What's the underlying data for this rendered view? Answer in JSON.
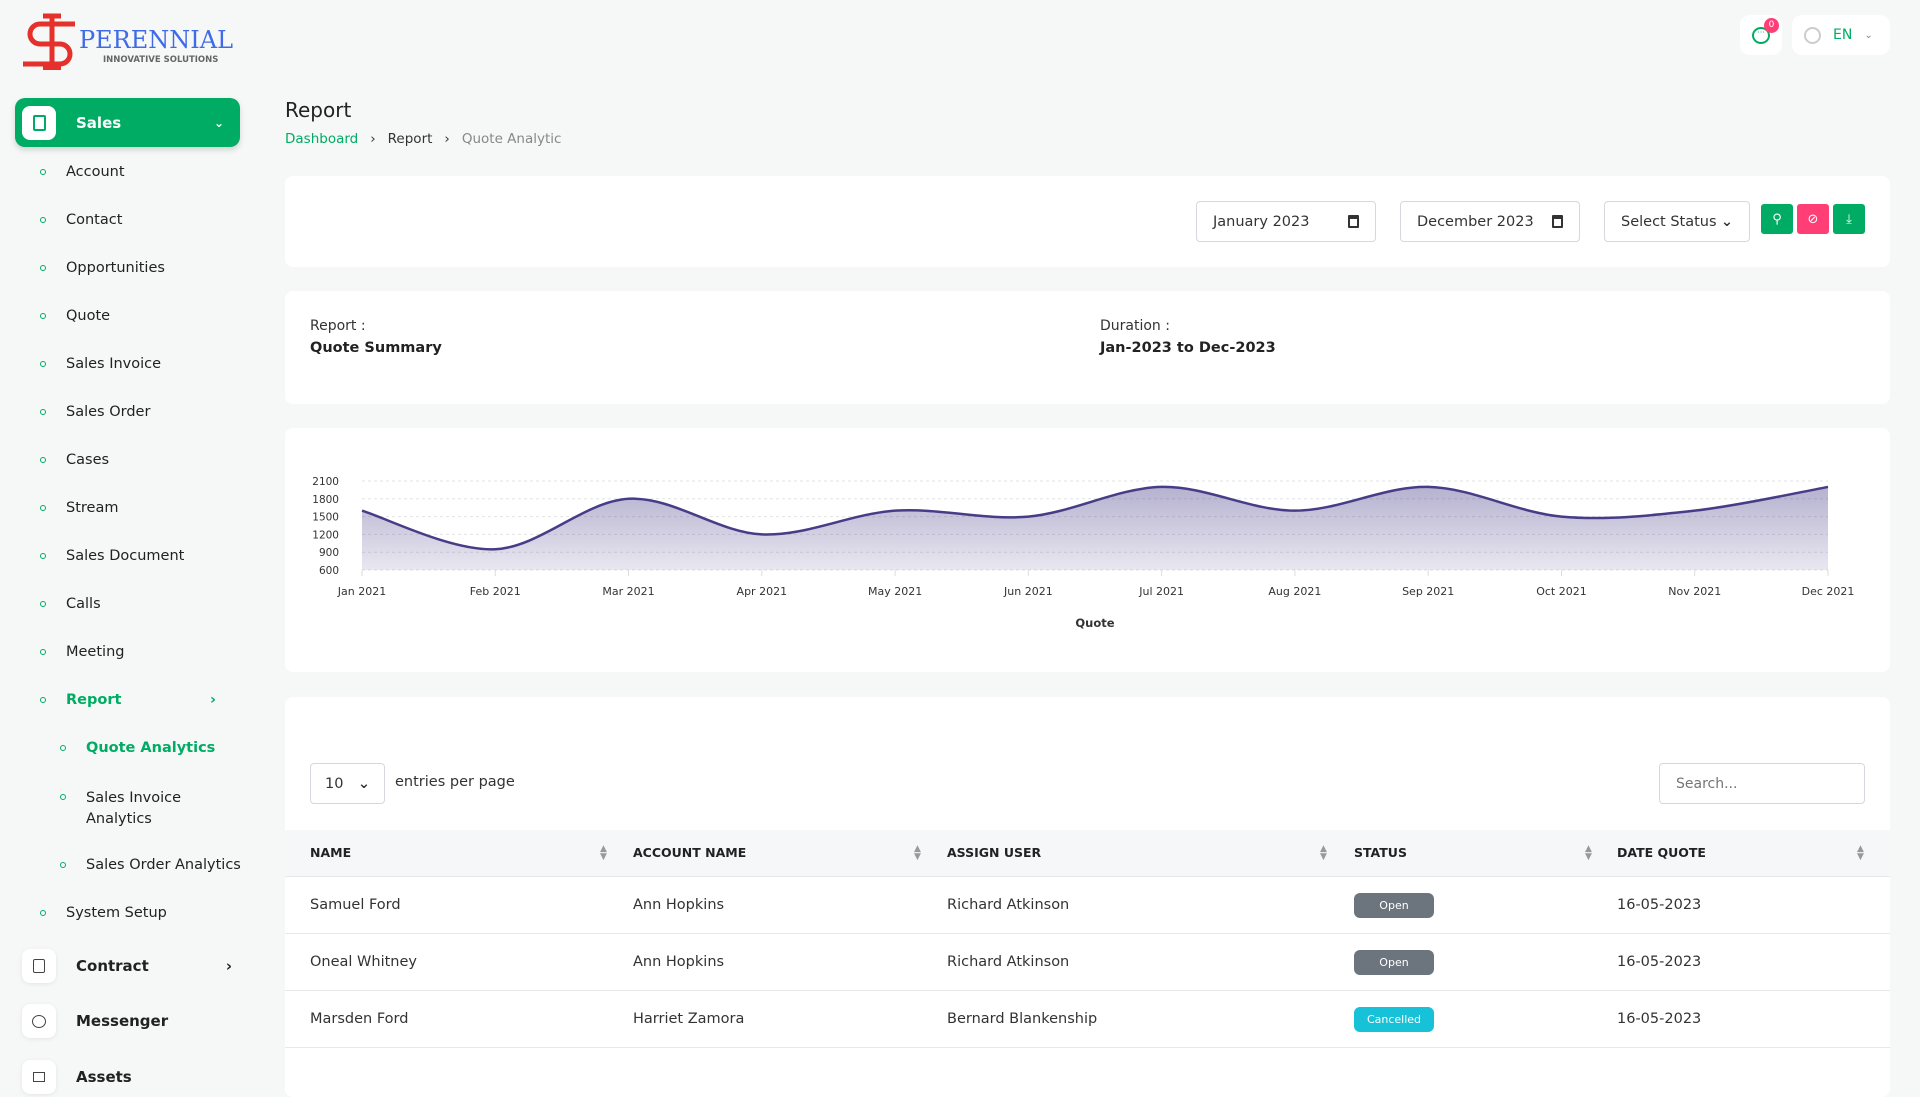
{
  "brand": {
    "name": "PERENNIAL",
    "tagline": "INNOVATIVE SOLUTIONS"
  },
  "header": {
    "notifications_count": "0",
    "language": "EN"
  },
  "sidebar": {
    "sales_label": "Sales",
    "items": [
      {
        "label": "Account"
      },
      {
        "label": "Contact"
      },
      {
        "label": "Opportunities"
      },
      {
        "label": "Quote"
      },
      {
        "label": "Sales Invoice"
      },
      {
        "label": "Sales Order"
      },
      {
        "label": "Cases"
      },
      {
        "label": "Stream"
      },
      {
        "label": "Sales Document"
      },
      {
        "label": "Calls"
      },
      {
        "label": "Meeting"
      },
      {
        "label": "Report"
      }
    ],
    "report_sub": [
      {
        "label": "Quote Analytics"
      },
      {
        "label": "Sales Invoice Analytics"
      },
      {
        "label": "Sales Order Analytics"
      }
    ],
    "system_setup": "System Setup",
    "groups": [
      {
        "label": "Contract"
      },
      {
        "label": "Messenger"
      },
      {
        "label": "Assets"
      }
    ]
  },
  "page": {
    "title": "Report",
    "breadcrumb": [
      "Dashboard",
      "Report",
      "Quote Analytic"
    ]
  },
  "filters": {
    "from": "January 2023",
    "to": "December 2023",
    "status_placeholder": "Select Status"
  },
  "summary": {
    "report_label": "Report :",
    "report_value": "Quote Summary",
    "duration_label": "Duration :",
    "duration_value": "Jan-2023 to Dec-2023"
  },
  "colors": {
    "accent": "#00ac63",
    "danger": "#ff3e76",
    "series": "#463c87",
    "open": "#6c757d",
    "cancelled": "#17c1d8"
  },
  "chart_data": {
    "type": "area",
    "categories": [
      "Jan 2021",
      "Feb 2021",
      "Mar 2021",
      "Apr 2021",
      "May 2021",
      "Jun 2021",
      "Jul 2021",
      "Aug 2021",
      "Sep 2021",
      "Oct 2021",
      "Nov 2021",
      "Dec 2021"
    ],
    "values": [
      1600,
      950,
      1800,
      1200,
      1600,
      1500,
      2000,
      1600,
      2000,
      1500,
      1600,
      2000
    ],
    "yticks": [
      600,
      900,
      1200,
      1500,
      1800,
      2100
    ],
    "ylim": [
      600,
      2100
    ],
    "xlabel": "Quote",
    "grid": true,
    "smooth": true
  },
  "table": {
    "entries_value": "10",
    "entries_label": "entries per page",
    "search_placeholder": "Search...",
    "columns": [
      "NAME",
      "ACCOUNT NAME",
      "ASSIGN USER",
      "STATUS",
      "DATE QUOTE"
    ],
    "rows": [
      {
        "name": "Samuel Ford",
        "account": "Ann Hopkins",
        "user": "Richard Atkinson",
        "status": "Open",
        "date": "16-05-2023"
      },
      {
        "name": "Oneal Whitney",
        "account": "Ann Hopkins",
        "user": "Richard Atkinson",
        "status": "Open",
        "date": "16-05-2023"
      },
      {
        "name": "Marsden Ford",
        "account": "Harriet Zamora",
        "user": "Bernard Blankenship",
        "status": "Cancelled",
        "date": "16-05-2023"
      }
    ]
  }
}
